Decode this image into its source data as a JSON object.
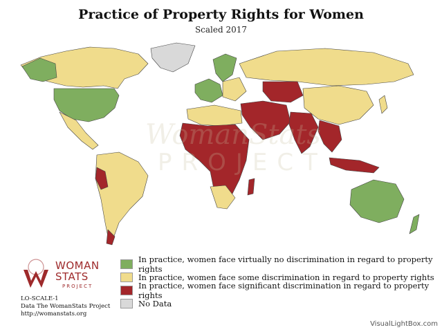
{
  "title": "Practice of Property Rights for Women",
  "subtitle": "Scaled 2017",
  "legend": [
    {
      "label": "In practice, women face virtually no discrimination in regard to property rights",
      "color": "#7fae5f"
    },
    {
      "label": "In practice, women face some discrimination in regard to property rights",
      "color": "#f0dc8c"
    },
    {
      "label": "In practice, women face significant discrimination in regard to property rights",
      "color": "#a3262a"
    },
    {
      "label": "No Data",
      "color": "#d9d9d9"
    }
  ],
  "logo": {
    "main": "WOMAN STATS",
    "line1": "WOMAN",
    "line2": "STATS",
    "sub": "PROJECT"
  },
  "info": {
    "code": "LO-SCALE-1",
    "source": "Data The WomanStats Project",
    "url": "http://womanstats.org"
  },
  "credit": "VisualLightBox.com",
  "watermark": {
    "line1": "WomanStats",
    "line2": "PROJECT"
  },
  "colors": {
    "none": "#7fae5f",
    "some": "#f0dc8c",
    "significant": "#a3262a",
    "nodata": "#d9d9d9",
    "border": "#444444"
  }
}
